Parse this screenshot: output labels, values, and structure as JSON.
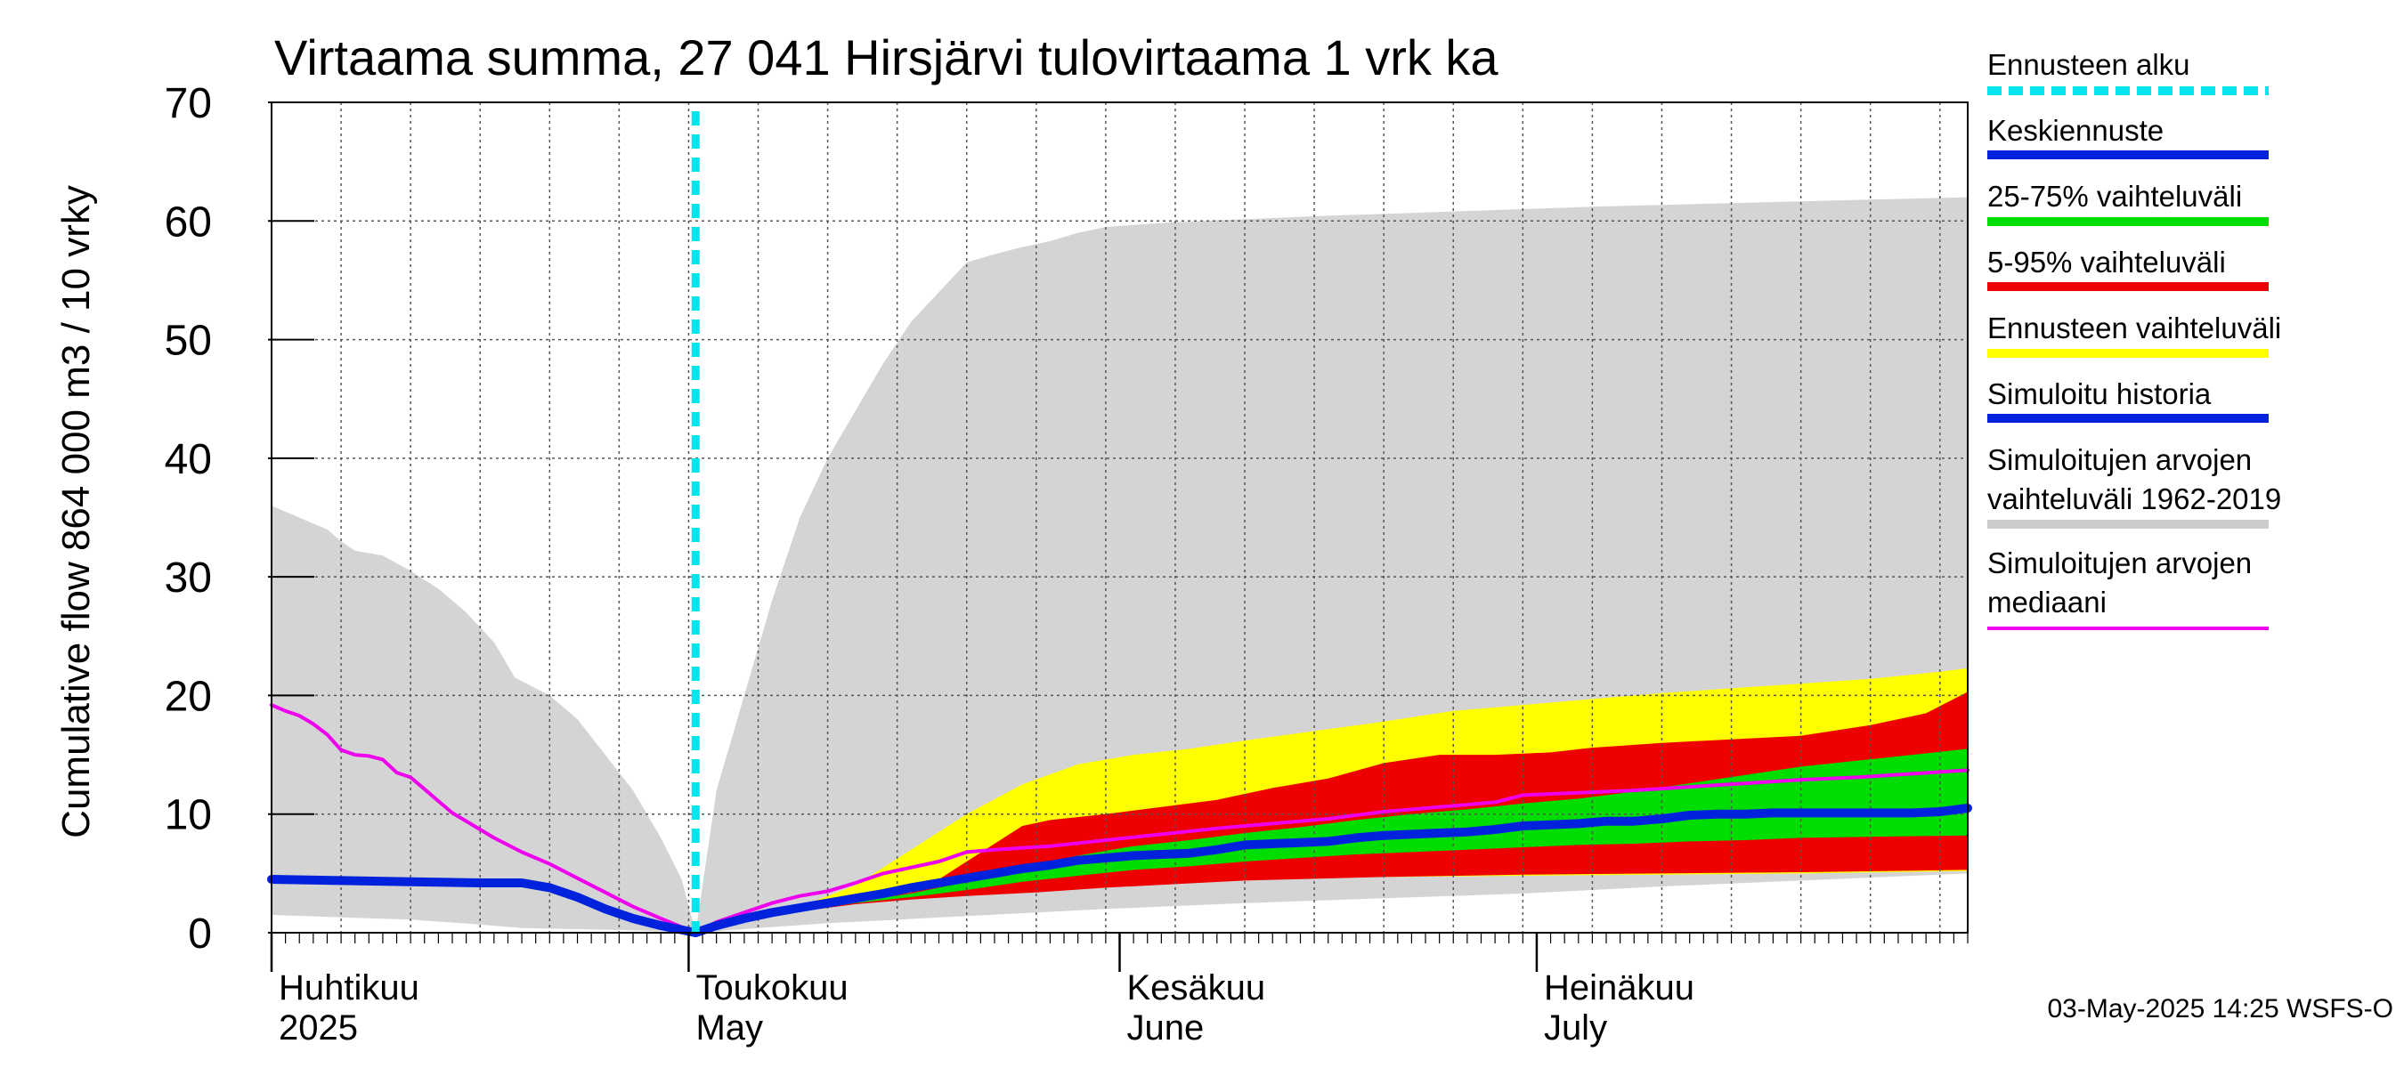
{
  "chart_data": {
    "type": "area",
    "title": "Virtaama summa, 27 041 Hirsjärvi tulovirtaama 1 vrk ka",
    "ylabel": "Cumulative flow    864 000 m3 / 10 vrky",
    "ylim": [
      0,
      70
    ],
    "yticks": [
      0,
      10,
      20,
      30,
      40,
      50,
      60,
      70
    ],
    "x_range_days": [
      0,
      122
    ],
    "x_start_date": "2025-04-01",
    "forecast_start_day": 30.5,
    "month_labels": [
      {
        "day": 0,
        "fi": "Huhtikuu",
        "en": "2025"
      },
      {
        "day": 30,
        "fi": "Toukokuu",
        "en": "May"
      },
      {
        "day": 61,
        "fi": "Kesäkuu",
        "en": "June"
      },
      {
        "day": 91,
        "fi": "Heinäkuu",
        "en": "July"
      }
    ],
    "legend": [
      {
        "label": "Ennusteen alku",
        "color": "#00e5ee",
        "style": "dashed"
      },
      {
        "label": "Keskiennuste",
        "color": "#0022dd",
        "style": "line"
      },
      {
        "label": "25-75% vaihteluväli",
        "color": "#00dd00",
        "style": "line"
      },
      {
        "label": "5-95% vaihteluväli",
        "color": "#ee0000",
        "style": "line"
      },
      {
        "label": "Ennusteen vaihteluväli",
        "color": "#ffff00",
        "style": "line"
      },
      {
        "label": "Simuloitu historia",
        "color": "#0022dd",
        "style": "line"
      },
      {
        "label": "Simuloitujen arvojen\nvaihteluväli 1962-2019",
        "color": "#cccccc",
        "style": "line"
      },
      {
        "label": "Simuloitujen arvojen\nmediaani",
        "color": "#ee00ee",
        "style": "thin"
      }
    ],
    "footer": "03-May-2025 14:25 WSFS-O",
    "series": {
      "hist_range_upper": [
        [
          0,
          36
        ],
        [
          2,
          35
        ],
        [
          3,
          34.5
        ],
        [
          4,
          34
        ],
        [
          5,
          33
        ],
        [
          6,
          32.2
        ],
        [
          8,
          31.8
        ],
        [
          10,
          30.5
        ],
        [
          12,
          29
        ],
        [
          14,
          27
        ],
        [
          16,
          24.5
        ],
        [
          17.5,
          21.5
        ],
        [
          20,
          20
        ],
        [
          22,
          18
        ],
        [
          24,
          15
        ],
        [
          26,
          12
        ],
        [
          28,
          8
        ],
        [
          29.5,
          4.5
        ],
        [
          30.5,
          0
        ]
      ],
      "hist_range_lower": [
        [
          0,
          1.5
        ],
        [
          5,
          1.3
        ],
        [
          10,
          1.1
        ],
        [
          15,
          0.7
        ],
        [
          18,
          0.4
        ],
        [
          22,
          0.3
        ],
        [
          26,
          0.2
        ],
        [
          30.5,
          0
        ]
      ],
      "fut_range_upper": [
        [
          30.5,
          0
        ],
        [
          32,
          12
        ],
        [
          34,
          20
        ],
        [
          36,
          28
        ],
        [
          38,
          35
        ],
        [
          40,
          40
        ],
        [
          42,
          44
        ],
        [
          44,
          48
        ],
        [
          46,
          51.5
        ],
        [
          48,
          54
        ],
        [
          50,
          56.5
        ],
        [
          52,
          57.2
        ],
        [
          54,
          57.8
        ],
        [
          56,
          58.3
        ],
        [
          58,
          59
        ],
        [
          60,
          59.5
        ],
        [
          65,
          59.9
        ],
        [
          75,
          60.4
        ],
        [
          85,
          60.8
        ],
        [
          95,
          61.2
        ],
        [
          105,
          61.5
        ],
        [
          115,
          61.8
        ],
        [
          122,
          62
        ]
      ],
      "fut_range_lower": [
        [
          30.5,
          0
        ],
        [
          35,
          0.4
        ],
        [
          40,
          0.8
        ],
        [
          50,
          1.4
        ],
        [
          60,
          2
        ],
        [
          70,
          2.5
        ],
        [
          80,
          2.9
        ],
        [
          90,
          3.3
        ],
        [
          100,
          3.9
        ],
        [
          110,
          4.4
        ],
        [
          122,
          5
        ]
      ],
      "ens_upper": [
        [
          30.5,
          0
        ],
        [
          34,
          1
        ],
        [
          38,
          2.2
        ],
        [
          42,
          4
        ],
        [
          46,
          7
        ],
        [
          50,
          10
        ],
        [
          54,
          12.5
        ],
        [
          58,
          14.2
        ],
        [
          62,
          15
        ],
        [
          66,
          15.5
        ],
        [
          70,
          16.2
        ],
        [
          75,
          17
        ],
        [
          80,
          17.8
        ],
        [
          85,
          18.7
        ],
        [
          90,
          19.2
        ],
        [
          95,
          19.7
        ],
        [
          100,
          20.2
        ],
        [
          105,
          20.6
        ],
        [
          110,
          21
        ],
        [
          115,
          21.4
        ],
        [
          120,
          22
        ],
        [
          122,
          22.3
        ]
      ],
      "ens_lower": [
        [
          30.5,
          0
        ],
        [
          34,
          0.9
        ],
        [
          38,
          1.8
        ],
        [
          42,
          2.6
        ],
        [
          46,
          3.2
        ],
        [
          50,
          3.6
        ],
        [
          55,
          3.9
        ],
        [
          60,
          4.2
        ],
        [
          70,
          4.5
        ],
        [
          80,
          4.7
        ],
        [
          90,
          4.8
        ],
        [
          100,
          4.9
        ],
        [
          110,
          5
        ],
        [
          122,
          5.2
        ]
      ],
      "p95": [
        [
          30.5,
          0
        ],
        [
          34,
          0.9
        ],
        [
          38,
          1.8
        ],
        [
          42,
          2.6
        ],
        [
          46,
          3.4
        ],
        [
          48,
          4.5
        ],
        [
          50,
          6
        ],
        [
          54,
          9
        ],
        [
          56,
          9.5
        ],
        [
          60,
          10
        ],
        [
          64,
          10.6
        ],
        [
          68,
          11.2
        ],
        [
          72,
          12.2
        ],
        [
          76,
          13
        ],
        [
          80,
          14.3
        ],
        [
          84,
          15
        ],
        [
          88,
          15
        ],
        [
          92,
          15.2
        ],
        [
          95,
          15.6
        ],
        [
          100,
          16
        ],
        [
          105,
          16.3
        ],
        [
          110,
          16.6
        ],
        [
          115,
          17.5
        ],
        [
          119,
          18.5
        ],
        [
          122,
          20.3
        ]
      ],
      "p05": [
        [
          30.5,
          0
        ],
        [
          34,
          0.9
        ],
        [
          38,
          1.8
        ],
        [
          42,
          2.4
        ],
        [
          46,
          2.8
        ],
        [
          50,
          3.1
        ],
        [
          55,
          3.4
        ],
        [
          60,
          3.8
        ],
        [
          65,
          4.1
        ],
        [
          70,
          4.4
        ],
        [
          80,
          4.7
        ],
        [
          90,
          4.9
        ],
        [
          100,
          5
        ],
        [
          110,
          5.1
        ],
        [
          122,
          5.3
        ]
      ],
      "p75": [
        [
          30.5,
          0
        ],
        [
          34,
          0.9
        ],
        [
          38,
          1.8
        ],
        [
          42,
          2.6
        ],
        [
          46,
          3.3
        ],
        [
          50,
          4.3
        ],
        [
          54,
          5.5
        ],
        [
          58,
          6.5
        ],
        [
          62,
          7.3
        ],
        [
          66,
          7.8
        ],
        [
          70,
          8.4
        ],
        [
          74,
          8.9
        ],
        [
          78,
          9.5
        ],
        [
          82,
          10
        ],
        [
          86,
          10.4
        ],
        [
          90,
          10.9
        ],
        [
          94,
          11.3
        ],
        [
          98,
          11.9
        ],
        [
          102,
          12.6
        ],
        [
          106,
          13.3
        ],
        [
          110,
          14
        ],
        [
          114,
          14.5
        ],
        [
          118,
          15
        ],
        [
          122,
          15.5
        ]
      ],
      "p25": [
        [
          30.5,
          0
        ],
        [
          34,
          0.9
        ],
        [
          38,
          1.8
        ],
        [
          42,
          2.5
        ],
        [
          46,
          3
        ],
        [
          50,
          3.6
        ],
        [
          54,
          4.3
        ],
        [
          58,
          4.8
        ],
        [
          62,
          5.3
        ],
        [
          66,
          5.6
        ],
        [
          70,
          6
        ],
        [
          74,
          6.3
        ],
        [
          78,
          6.6
        ],
        [
          82,
          6.8
        ],
        [
          86,
          7
        ],
        [
          90,
          7.2
        ],
        [
          94,
          7.4
        ],
        [
          98,
          7.5
        ],
        [
          102,
          7.7
        ],
        [
          106,
          7.8
        ],
        [
          110,
          8
        ],
        [
          116,
          8.1
        ],
        [
          122,
          8.2
        ]
      ],
      "median_forecast": [
        [
          30.5,
          0
        ],
        [
          32,
          0.6
        ],
        [
          34,
          1.2
        ],
        [
          36,
          1.7
        ],
        [
          38,
          2.1
        ],
        [
          40,
          2.5
        ],
        [
          42,
          2.9
        ],
        [
          44,
          3.3
        ],
        [
          46,
          3.8
        ],
        [
          48,
          4.2
        ],
        [
          50,
          4.6
        ],
        [
          52,
          5
        ],
        [
          54,
          5.4
        ],
        [
          56,
          5.7
        ],
        [
          58,
          6.1
        ],
        [
          60,
          6.3
        ],
        [
          62,
          6.5
        ],
        [
          64,
          6.6
        ],
        [
          66,
          6.7
        ],
        [
          68,
          7
        ],
        [
          70,
          7.4
        ],
        [
          72,
          7.5
        ],
        [
          74,
          7.6
        ],
        [
          76,
          7.7
        ],
        [
          78,
          8
        ],
        [
          80,
          8.2
        ],
        [
          82,
          8.3
        ],
        [
          84,
          8.4
        ],
        [
          86,
          8.5
        ],
        [
          88,
          8.7
        ],
        [
          90,
          9
        ],
        [
          92,
          9.1
        ],
        [
          94,
          9.2
        ],
        [
          96,
          9.4
        ],
        [
          98,
          9.4
        ],
        [
          100,
          9.6
        ],
        [
          102,
          9.9
        ],
        [
          104,
          10
        ],
        [
          106,
          10
        ],
        [
          108,
          10.1
        ],
        [
          110,
          10.1
        ],
        [
          112,
          10.1
        ],
        [
          114,
          10.1
        ],
        [
          116,
          10.1
        ],
        [
          118,
          10.1
        ],
        [
          120,
          10.2
        ],
        [
          122,
          10.5
        ]
      ],
      "simulated_history": [
        [
          0,
          4.5
        ],
        [
          5,
          4.4
        ],
        [
          10,
          4.3
        ],
        [
          15,
          4.2
        ],
        [
          18,
          4.2
        ],
        [
          20,
          3.8
        ],
        [
          22,
          3
        ],
        [
          24,
          2
        ],
        [
          26,
          1.2
        ],
        [
          28,
          0.6
        ],
        [
          30.5,
          0
        ]
      ],
      "hist_median": [
        [
          0,
          19.2
        ],
        [
          1,
          18.7
        ],
        [
          2,
          18.3
        ],
        [
          3,
          17.6
        ],
        [
          4,
          16.7
        ],
        [
          5,
          15.4
        ],
        [
          6,
          15
        ],
        [
          7,
          14.9
        ],
        [
          8,
          14.6
        ],
        [
          9,
          13.5
        ],
        [
          10,
          13.1
        ],
        [
          11,
          12.1
        ],
        [
          12,
          11.1
        ],
        [
          13,
          10.1
        ],
        [
          14,
          9.4
        ],
        [
          15,
          8.7
        ],
        [
          16,
          8
        ],
        [
          17,
          7.4
        ],
        [
          18,
          6.8
        ],
        [
          20,
          5.8
        ],
        [
          22,
          4.6
        ],
        [
          24,
          3.4
        ],
        [
          26,
          2.2
        ],
        [
          28,
          1.2
        ],
        [
          30.5,
          0
        ],
        [
          32,
          0.9
        ],
        [
          34,
          1.7
        ],
        [
          36,
          2.5
        ],
        [
          38,
          3.1
        ],
        [
          40,
          3.5
        ],
        [
          42,
          4.2
        ],
        [
          44,
          5
        ],
        [
          46,
          5.5
        ],
        [
          48,
          6
        ],
        [
          50,
          6.8
        ],
        [
          52,
          7
        ],
        [
          56,
          7.3
        ],
        [
          60,
          7.8
        ],
        [
          64,
          8.3
        ],
        [
          68,
          8.8
        ],
        [
          72,
          9.2
        ],
        [
          76,
          9.6
        ],
        [
          80,
          10.2
        ],
        [
          84,
          10.6
        ],
        [
          88,
          11
        ],
        [
          90,
          11.6
        ],
        [
          94,
          11.8
        ],
        [
          98,
          12
        ],
        [
          102,
          12.3
        ],
        [
          106,
          12.6
        ],
        [
          110,
          12.9
        ],
        [
          114,
          13.1
        ],
        [
          118,
          13.4
        ],
        [
          122,
          13.7
        ]
      ]
    }
  }
}
